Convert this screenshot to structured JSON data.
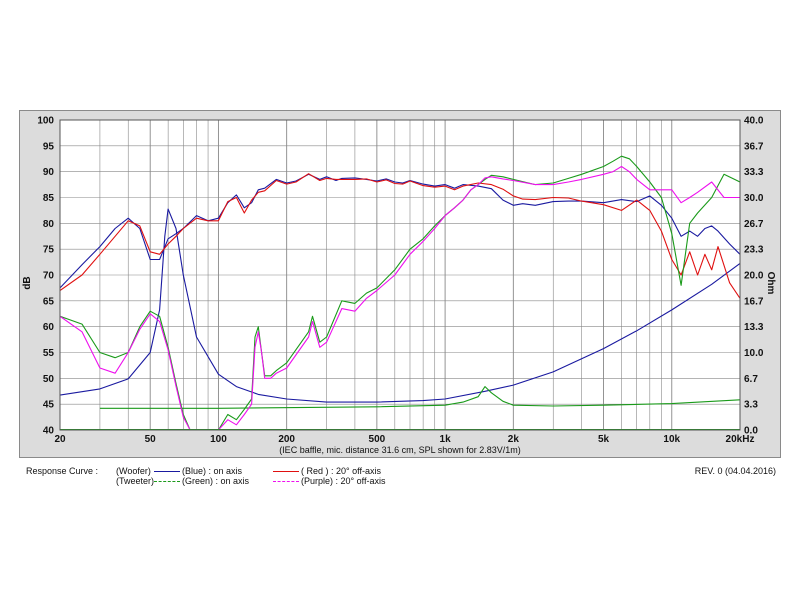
{
  "chart_data": {
    "type": "line",
    "x_scale": "log",
    "xlim": [
      20,
      20000
    ],
    "ylim": [
      40,
      100
    ],
    "y2lim": [
      0,
      40
    ],
    "grid": true,
    "ylabel": "dB",
    "y2label": "Ohm",
    "x_ticks": [
      "20",
      "50",
      "100",
      "200",
      "500",
      "1k",
      "2k",
      "5k",
      "10k",
      "20kHz"
    ],
    "x_tick_values": [
      20,
      50,
      100,
      200,
      500,
      1000,
      2000,
      5000,
      10000,
      20000
    ],
    "y_ticks": [
      "100",
      "95",
      "90",
      "85",
      "80",
      "75",
      "70",
      "65",
      "60",
      "55",
      "50",
      "45",
      "40"
    ],
    "y2_ticks": [
      "40.0",
      "36.7",
      "33.3",
      "30.0",
      "26.7",
      "23.3",
      "20.0",
      "16.7",
      "13.3",
      "10.0",
      "6.7",
      "3.3",
      "0.0"
    ],
    "caption": "(IEC baffle, mic. distance 31.6 cm, SPL shown for 2.83V/1m)",
    "series": [
      {
        "name": "Woofer impedance",
        "color": "#1a1aa0",
        "axis": "ohm",
        "x": [
          20,
          30,
          40,
          50,
          55,
          58,
          60,
          65,
          70,
          80,
          100,
          120,
          150,
          200,
          300,
          500,
          800,
          1000,
          1500,
          2000,
          3000,
          5000,
          7000,
          10000,
          15000,
          20000
        ],
        "y": [
          4.5,
          5.3,
          6.6,
          10,
          15.5,
          25,
          28.5,
          26,
          20,
          12,
          7.2,
          5.6,
          4.6,
          4.0,
          3.6,
          3.6,
          3.8,
          4.0,
          5.0,
          5.8,
          7.5,
          10.5,
          12.8,
          15.5,
          18.8,
          21.5
        ]
      },
      {
        "name": "Tweeter impedance",
        "color": "#1a9a1a",
        "axis": "ohm",
        "x": [
          30,
          100,
          500,
          1000,
          1200,
          1400,
          1500,
          1600,
          1800,
          2000,
          3000,
          5000,
          10000,
          20000
        ],
        "y": [
          2.8,
          2.8,
          3.0,
          3.2,
          3.6,
          4.3,
          5.6,
          4.8,
          3.7,
          3.2,
          3.1,
          3.2,
          3.4,
          3.9
        ]
      },
      {
        "name": "Woofer on axis",
        "color": "#1a1aa0",
        "axis": "db",
        "x": [
          20,
          25,
          30,
          35,
          40,
          45,
          50,
          55,
          60,
          65,
          70,
          80,
          90,
          100,
          110,
          120,
          130,
          140,
          150,
          160,
          180,
          200,
          220,
          250,
          280,
          300,
          330,
          350,
          400,
          450,
          500,
          550,
          600,
          650,
          700,
          800,
          900,
          1000,
          1100,
          1200,
          1400,
          1600,
          1800,
          2000,
          2200,
          2500,
          3000,
          3500,
          4000,
          5000,
          6000,
          7000,
          8000,
          9000,
          10000,
          11000,
          12000,
          13000,
          14000,
          15000,
          16000,
          18000,
          20000
        ],
        "y": [
          67.5,
          72,
          75.5,
          79,
          81,
          79,
          73,
          73,
          77,
          78,
          79,
          81.5,
          80.5,
          81,
          84,
          85.5,
          83,
          84,
          86.5,
          86.8,
          88.5,
          87.8,
          88.2,
          89.5,
          88.5,
          89,
          88.3,
          88.7,
          88.8,
          88.5,
          88.2,
          88.6,
          88,
          87.8,
          88.3,
          87.6,
          87.2,
          87.5,
          86.8,
          87.5,
          87.2,
          86.7,
          84.5,
          83.5,
          83.8,
          83.5,
          84.2,
          84.3,
          84.3,
          84,
          84.6,
          84.2,
          85.3,
          83.5,
          81,
          77.5,
          78.5,
          77.5,
          79,
          79.5,
          78.5,
          76,
          74
        ]
      },
      {
        "name": "Woofer 20° off-axis",
        "color": "#e01010",
        "axis": "db",
        "x": [
          20,
          25,
          30,
          35,
          40,
          45,
          50,
          55,
          60,
          65,
          70,
          80,
          90,
          100,
          110,
          120,
          130,
          140,
          150,
          160,
          180,
          200,
          220,
          250,
          280,
          300,
          330,
          350,
          400,
          450,
          500,
          550,
          600,
          650,
          700,
          800,
          900,
          1000,
          1100,
          1200,
          1400,
          1600,
          1800,
          2000,
          2200,
          2500,
          3000,
          3500,
          4000,
          5000,
          6000,
          7000,
          8000,
          9000,
          10000,
          11000,
          12000,
          13000,
          14000,
          15000,
          16000,
          18000,
          20000
        ],
        "y": [
          67,
          70,
          74,
          77.5,
          80.5,
          79.5,
          74.5,
          74,
          76,
          77.5,
          79,
          81,
          80.5,
          80.5,
          84.2,
          85,
          82,
          84.5,
          86,
          86.3,
          88.3,
          87.6,
          88,
          89.6,
          88.3,
          88.7,
          88.5,
          88.5,
          88.5,
          88.6,
          88,
          88.4,
          87.7,
          87.6,
          88.2,
          87.3,
          87,
          87.2,
          86.5,
          87.2,
          87.8,
          87.5,
          86.6,
          85.3,
          84.7,
          84.6,
          85,
          84.9,
          84.3,
          83.6,
          82.5,
          84.5,
          82.5,
          78.5,
          73,
          70,
          74.5,
          70,
          74,
          71,
          75.5,
          68.5,
          65.5
        ]
      },
      {
        "name": "Tweeter on axis",
        "color": "#1a9a1a",
        "axis": "db",
        "x": [
          20,
          25,
          30,
          35,
          40,
          45,
          50,
          55,
          60,
          65,
          70,
          75,
          100,
          110,
          120,
          130,
          140,
          145,
          150,
          155,
          160,
          170,
          180,
          200,
          250,
          260,
          280,
          300,
          350,
          400,
          450,
          500,
          600,
          700,
          800,
          900,
          1000,
          1100,
          1200,
          1300,
          1400,
          1500,
          1600,
          1800,
          2000,
          2500,
          3000,
          3500,
          4000,
          5000,
          5500,
          6000,
          6500,
          7000,
          8000,
          9000,
          10000,
          11000,
          12000,
          13000,
          15000,
          17000,
          20000
        ],
        "y": [
          62,
          60.5,
          55,
          54,
          55,
          60,
          63,
          62,
          56,
          49,
          43,
          40,
          40,
          43,
          42,
          44,
          46,
          58,
          60,
          55,
          50.5,
          50.5,
          51.5,
          53,
          59,
          62,
          57,
          58,
          65,
          64.5,
          66.5,
          67.5,
          71,
          75,
          77,
          79.5,
          81.5,
          83,
          84.5,
          86.5,
          87.5,
          88.5,
          89.3,
          89,
          88.5,
          87.5,
          87.8,
          88.7,
          89.5,
          91,
          92,
          93,
          92.5,
          91,
          88,
          85,
          78,
          68,
          80,
          82,
          85,
          89.5,
          88
        ]
      },
      {
        "name": "Tweeter 20° off-axis",
        "color": "#ee10ee",
        "axis": "db",
        "x": [
          20,
          25,
          30,
          35,
          40,
          45,
          50,
          55,
          60,
          65,
          70,
          75,
          100,
          110,
          120,
          130,
          140,
          145,
          150,
          155,
          160,
          170,
          180,
          200,
          250,
          260,
          280,
          300,
          350,
          400,
          450,
          500,
          600,
          700,
          800,
          900,
          1000,
          1100,
          1200,
          1300,
          1400,
          1500,
          1600,
          1800,
          2000,
          2500,
          3000,
          3500,
          4000,
          5000,
          5500,
          6000,
          6500,
          7000,
          8000,
          9000,
          10000,
          11000,
          12000,
          13000,
          15000,
          17000,
          20000
        ],
        "y": [
          62,
          59,
          52,
          51,
          55,
          59.5,
          62.5,
          61,
          55.5,
          48.5,
          42.5,
          40,
          40,
          42,
          41,
          43,
          45,
          56,
          59,
          55,
          50,
          50,
          51,
          52,
          58,
          61,
          56,
          57,
          63.5,
          63,
          65.5,
          67,
          70,
          74,
          76.5,
          79,
          81.5,
          83,
          84.5,
          86.5,
          87.5,
          88.8,
          89,
          88.6,
          88.3,
          87.5,
          87.5,
          88,
          88.5,
          89.5,
          90,
          91,
          90,
          88.5,
          86.5,
          86.5,
          86.5,
          84,
          85,
          86,
          88,
          85,
          85
        ]
      }
    ]
  },
  "legend": {
    "title": "Response Curve :",
    "woofer": "(Woofer)",
    "tweeter": "(Tweeter)",
    "blue": "(Blue)  : on axis",
    "green": "(Green) : on axis",
    "red": "( Red ) : 20° off-axis",
    "purple": "(Purple) : 20° off-axis",
    "revision": "REV. 0 (04.04.2016)",
    "colors": {
      "blue": "#1a1aa0",
      "green": "#1a9a1a",
      "red": "#e01010",
      "purple": "#ee10ee"
    }
  }
}
